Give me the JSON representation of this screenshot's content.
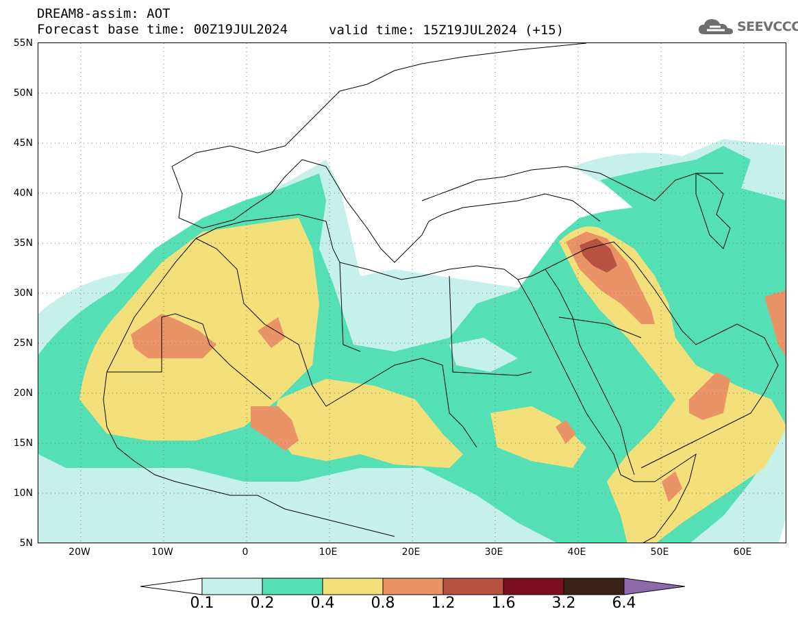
{
  "header": {
    "line1": "DREAM8-assim: AOT",
    "line2": "Forecast base time: 00Z19JUL2024",
    "valid": "valid time: 15Z19JUL2024 (+15)"
  },
  "logo": {
    "text": "SEEVCCC",
    "icon": "cloud-icon"
  },
  "axes": {
    "lat_labels": [
      "55N",
      "50N",
      "45N",
      "40N",
      "35N",
      "30N",
      "25N",
      "20N",
      "15N",
      "10N",
      "5N"
    ],
    "lon_labels": [
      "20W",
      "10W",
      "0",
      "10E",
      "20E",
      "30E",
      "40E",
      "50E",
      "60E"
    ]
  },
  "colorbar": {
    "labels": [
      "0.1",
      "0.2",
      "0.4",
      "0.8",
      "1.2",
      "1.6",
      "3.2",
      "6.4"
    ],
    "colors": [
      "#ffffff",
      "#c6f1ea",
      "#55dfb5",
      "#f4e07a",
      "#ea9366",
      "#b85240",
      "#7d0f22",
      "#3a2216",
      "#8f69ad"
    ]
  }
}
